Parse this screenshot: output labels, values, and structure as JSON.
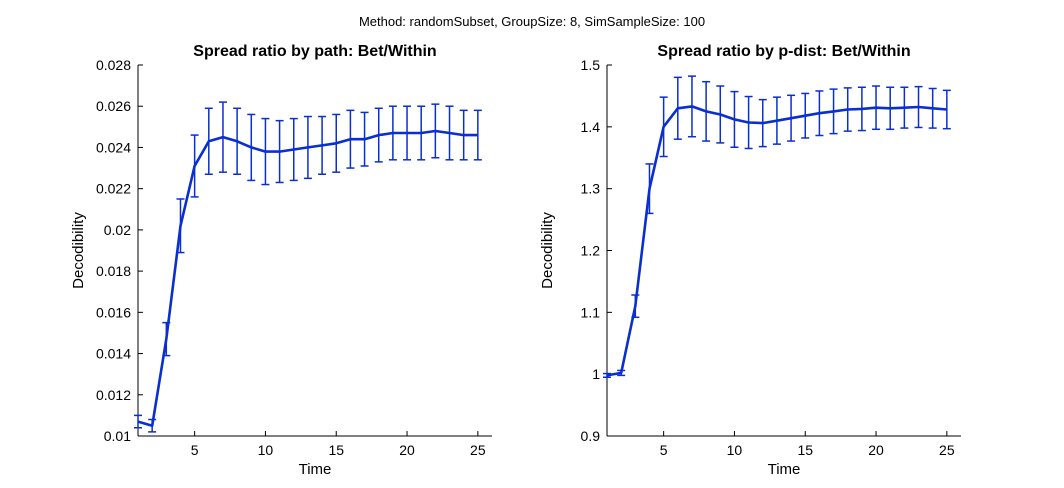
{
  "figure": {
    "suptitle": "Method: randomSubset, GroupSize: 8, SimSampleSize: 100",
    "line_color": "#0a2fd1"
  },
  "chart_data": [
    {
      "type": "line",
      "title": "Spread ratio by path: Bet/Within",
      "xlabel": "Time",
      "ylabel": "Decodibility",
      "xlim": [
        1,
        26
      ],
      "ylim": [
        0.01,
        0.028
      ],
      "xticks": [
        5,
        10,
        15,
        20,
        25
      ],
      "yticks": [
        0.01,
        0.012,
        0.014,
        0.016,
        0.018,
        0.02,
        0.022,
        0.024,
        0.026,
        0.028
      ],
      "ytick_labels": [
        "0.01",
        "0.012",
        "0.014",
        "0.016",
        "0.018",
        "0.02",
        "0.022",
        "0.024",
        "0.026",
        "0.028"
      ],
      "grid": false,
      "series": [
        {
          "x": [
            1,
            2,
            3,
            4,
            5,
            6,
            7,
            8,
            9,
            10,
            11,
            12,
            13,
            14,
            15,
            16,
            17,
            18,
            19,
            20,
            21,
            22,
            23,
            24,
            25
          ],
          "y": [
            0.0107,
            0.0105,
            0.0147,
            0.0202,
            0.0231,
            0.0243,
            0.0245,
            0.0243,
            0.024,
            0.0238,
            0.0238,
            0.0239,
            0.024,
            0.0241,
            0.0242,
            0.0244,
            0.0244,
            0.0246,
            0.0247,
            0.0247,
            0.0247,
            0.0248,
            0.0247,
            0.0246,
            0.0246
          ],
          "err": [
            0.0003,
            0.0003,
            0.0008,
            0.0013,
            0.0015,
            0.0016,
            0.0017,
            0.0016,
            0.0016,
            0.0016,
            0.0015,
            0.0015,
            0.0015,
            0.0014,
            0.0014,
            0.0014,
            0.0013,
            0.0013,
            0.0013,
            0.0013,
            0.0013,
            0.0013,
            0.0013,
            0.0012,
            0.0012
          ]
        }
      ]
    },
    {
      "type": "line",
      "title": "Spread ratio by p-dist: Bet/Within",
      "xlabel": "Time",
      "ylabel": "Decodibility",
      "xlim": [
        1,
        26
      ],
      "ylim": [
        0.9,
        1.5
      ],
      "xticks": [
        5,
        10,
        15,
        20,
        25
      ],
      "yticks": [
        0.9,
        1.0,
        1.1,
        1.2,
        1.3,
        1.4,
        1.5
      ],
      "ytick_labels": [
        "0.9",
        "1",
        "1.1",
        "1.2",
        "1.3",
        "1.4",
        "1.5"
      ],
      "grid": false,
      "series": [
        {
          "x": [
            1,
            2,
            3,
            4,
            5,
            6,
            7,
            8,
            9,
            10,
            11,
            12,
            13,
            14,
            15,
            16,
            17,
            18,
            19,
            20,
            21,
            22,
            23,
            24,
            25
          ],
          "y": [
            0.998,
            1.002,
            1.11,
            1.3,
            1.4,
            1.43,
            1.433,
            1.425,
            1.42,
            1.412,
            1.407,
            1.406,
            1.41,
            1.414,
            1.418,
            1.422,
            1.425,
            1.428,
            1.429,
            1.431,
            1.43,
            1.431,
            1.432,
            1.43,
            1.428
          ],
          "err": [
            0.003,
            0.004,
            0.018,
            0.04,
            0.048,
            0.05,
            0.049,
            0.048,
            0.046,
            0.045,
            0.042,
            0.038,
            0.038,
            0.037,
            0.036,
            0.036,
            0.036,
            0.035,
            0.035,
            0.035,
            0.034,
            0.033,
            0.033,
            0.032,
            0.031
          ]
        }
      ]
    }
  ]
}
